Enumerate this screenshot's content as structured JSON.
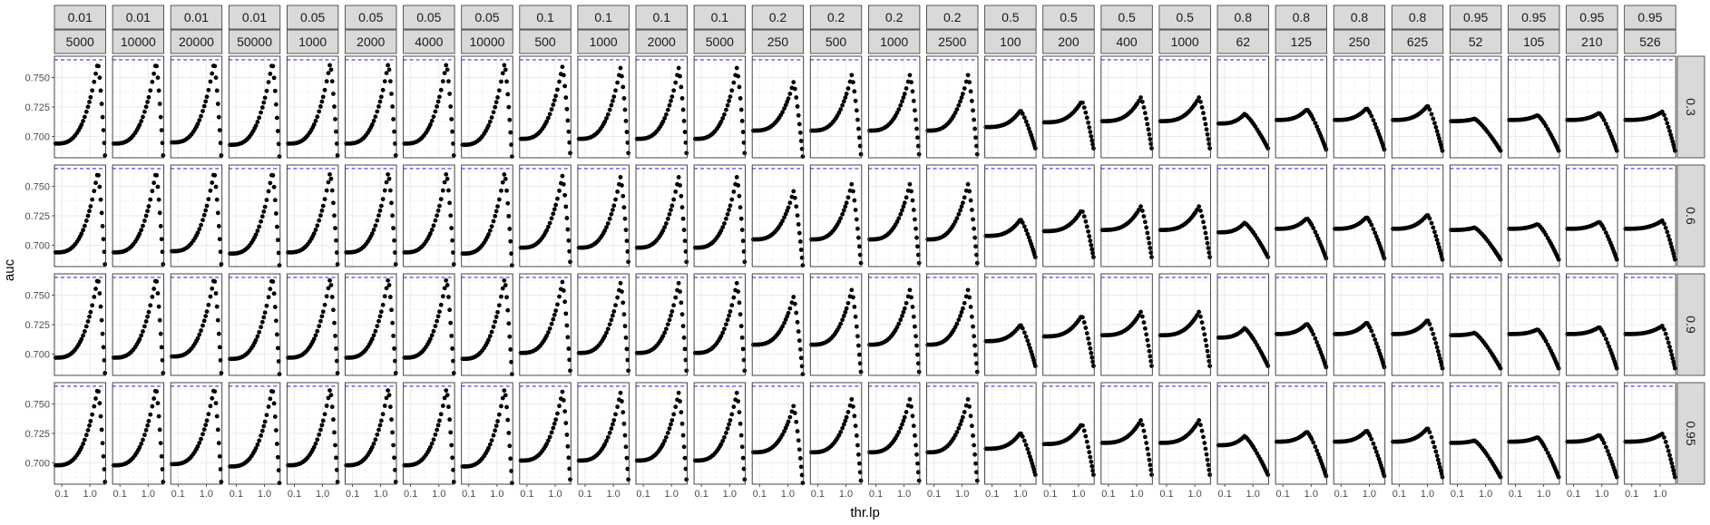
{
  "chart_data": {
    "type": "scatter",
    "facet_layout": "grid",
    "xlabel": "thr.lp",
    "ylabel": "auc",
    "x_scale": "log10",
    "x_ticks": [
      0.1,
      1.0
    ],
    "x_tick_labels": [
      "0.1",
      "1.0"
    ],
    "xlim": [
      0.055,
      3.6
    ],
    "ylim": [
      0.682,
      0.768
    ],
    "y_ticks": [
      0.7,
      0.725,
      0.75
    ],
    "y_tick_labels": [
      "0.700",
      "0.725",
      "0.750"
    ],
    "reference_line": {
      "y": 0.765,
      "style": "dashed",
      "color": "#3333ee"
    },
    "grid": true,
    "point_color": "#000000",
    "column_facets_top": [
      "0.01",
      "0.01",
      "0.01",
      "0.01",
      "0.05",
      "0.05",
      "0.05",
      "0.05",
      "0.1",
      "0.1",
      "0.1",
      "0.1",
      "0.2",
      "0.2",
      "0.2",
      "0.2",
      "0.5",
      "0.5",
      "0.5",
      "0.5",
      "0.8",
      "0.8",
      "0.8",
      "0.8",
      "0.95",
      "0.95",
      "0.95",
      "0.95"
    ],
    "column_facets_bottom": [
      "5000",
      "10000",
      "20000",
      "50000",
      "1000",
      "2000",
      "4000",
      "10000",
      "500",
      "1000",
      "2000",
      "5000",
      "250",
      "500",
      "1000",
      "2500",
      "100",
      "200",
      "400",
      "1000",
      "62",
      "125",
      "250",
      "625",
      "52",
      "105",
      "210",
      "526"
    ],
    "row_facets": [
      "0.3",
      "0.6",
      "0.9",
      "0.95"
    ],
    "x_points": [
      0.06,
      0.07,
      0.08,
      0.09,
      0.1,
      0.115,
      0.13,
      0.15,
      0.17,
      0.2,
      0.23,
      0.26,
      0.3,
      0.35,
      0.4,
      0.45,
      0.5,
      0.57,
      0.65,
      0.75,
      0.85,
      0.95,
      1.05,
      1.2,
      1.4,
      1.6,
      1.8,
      2.0,
      2.2,
      2.4,
      2.6,
      2.8,
      3.0,
      3.2,
      3.4
    ],
    "groups": [
      {
        "start": 0.694,
        "peak": 0.763,
        "end": 0.684,
        "xp": 1.9
      },
      {
        "start": 0.694,
        "peak": 0.763,
        "end": 0.684,
        "xp": 1.9
      },
      {
        "start": 0.695,
        "peak": 0.763,
        "end": 0.684,
        "xp": 1.9
      },
      {
        "start": 0.693,
        "peak": 0.763,
        "end": 0.683,
        "xp": 1.9
      },
      {
        "start": 0.694,
        "peak": 0.762,
        "end": 0.684,
        "xp": 1.85
      },
      {
        "start": 0.694,
        "peak": 0.762,
        "end": 0.684,
        "xp": 1.85
      },
      {
        "start": 0.694,
        "peak": 0.762,
        "end": 0.684,
        "xp": 1.85
      },
      {
        "start": 0.693,
        "peak": 0.762,
        "end": 0.683,
        "xp": 1.85
      },
      {
        "start": 0.698,
        "peak": 0.759,
        "end": 0.686,
        "xp": 1.8
      },
      {
        "start": 0.698,
        "peak": 0.758,
        "end": 0.686,
        "xp": 1.8
      },
      {
        "start": 0.698,
        "peak": 0.758,
        "end": 0.686,
        "xp": 1.8
      },
      {
        "start": 0.698,
        "peak": 0.758,
        "end": 0.686,
        "xp": 1.8
      },
      {
        "start": 0.705,
        "peak": 0.746,
        "end": 0.683,
        "xp": 1.6
      },
      {
        "start": 0.705,
        "peak": 0.752,
        "end": 0.685,
        "xp": 1.6
      },
      {
        "start": 0.705,
        "peak": 0.752,
        "end": 0.685,
        "xp": 1.6
      },
      {
        "start": 0.705,
        "peak": 0.752,
        "end": 0.685,
        "xp": 1.6
      },
      {
        "start": 0.708,
        "peak": 0.722,
        "end": 0.69,
        "xp": 1.0
      },
      {
        "start": 0.712,
        "peak": 0.73,
        "end": 0.69,
        "xp": 1.3
      },
      {
        "start": 0.713,
        "peak": 0.733,
        "end": 0.69,
        "xp": 1.4
      },
      {
        "start": 0.713,
        "peak": 0.733,
        "end": 0.69,
        "xp": 1.4
      },
      {
        "start": 0.711,
        "peak": 0.719,
        "end": 0.69,
        "xp": 0.5
      },
      {
        "start": 0.714,
        "peak": 0.723,
        "end": 0.689,
        "xp": 0.7
      },
      {
        "start": 0.714,
        "peak": 0.724,
        "end": 0.689,
        "xp": 0.8
      },
      {
        "start": 0.714,
        "peak": 0.726,
        "end": 0.688,
        "xp": 1.0
      },
      {
        "start": 0.713,
        "peak": 0.715,
        "end": 0.688,
        "xp": 0.4
      },
      {
        "start": 0.714,
        "peak": 0.718,
        "end": 0.688,
        "xp": 0.6
      },
      {
        "start": 0.714,
        "peak": 0.72,
        "end": 0.688,
        "xp": 0.8
      },
      {
        "start": 0.714,
        "peak": 0.721,
        "end": 0.688,
        "xp": 1.2
      }
    ],
    "row_scale": [
      1.0,
      0.995,
      0.985,
      0.955
    ],
    "row_start_offset": [
      0.0,
      0.0,
      0.003,
      0.004
    ]
  }
}
